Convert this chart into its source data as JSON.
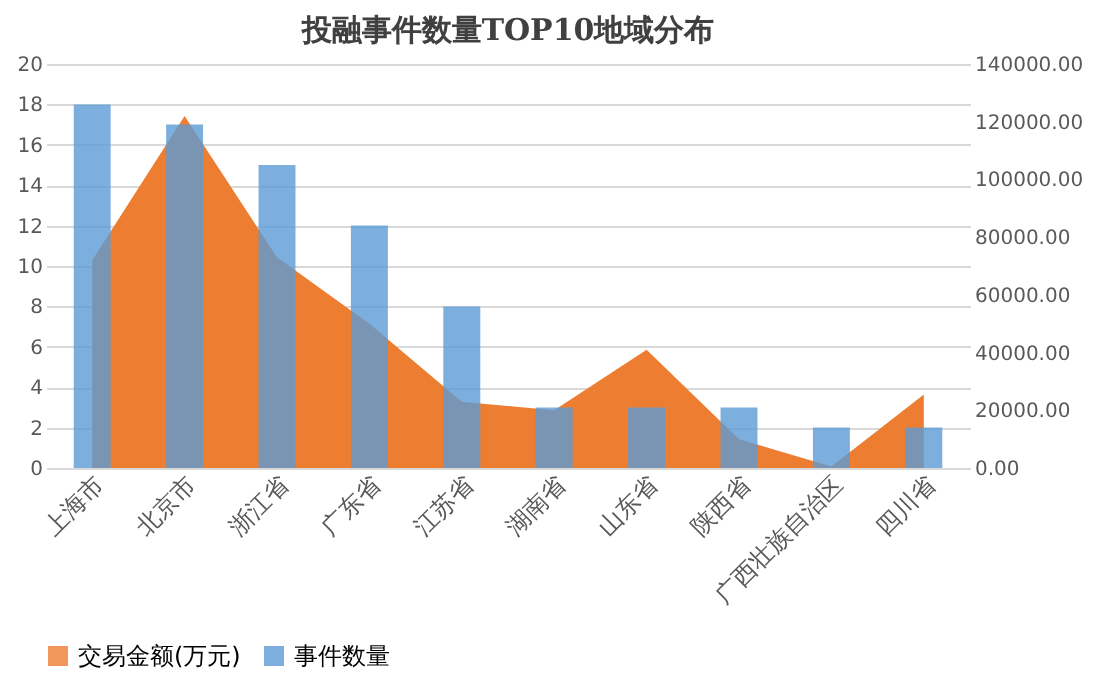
{
  "chart_data": {
    "type": "bar",
    "title": "投融事件数量TOP10地域分布",
    "categories": [
      "上海市",
      "北京市",
      "浙江省",
      "广东省",
      "江苏省",
      "湖南省",
      "山东省",
      "陕西省",
      "广西壮族自治区",
      "四川省"
    ],
    "series": [
      {
        "name": "交易金额(万元)",
        "type": "area",
        "axis": "y2",
        "color": "#ed7d31",
        "values": [
          72000,
          122000,
          73000,
          50000,
          23000,
          20000,
          41000,
          10000,
          500,
          25500
        ]
      },
      {
        "name": "事件数量",
        "color": "#5b9bd5",
        "values": [
          18,
          17,
          15,
          12,
          8,
          3,
          3,
          3,
          2,
          2
        ]
      }
    ],
    "ylim": [
      0,
      20
    ],
    "yticks": [
      0,
      2,
      4,
      6,
      8,
      10,
      12,
      14,
      16,
      18,
      20
    ],
    "y2lim": [
      0,
      140000
    ],
    "y2ticks": [
      {
        "value": 0,
        "label": "0.00"
      },
      {
        "value": 20000,
        "label": "20000.00"
      },
      {
        "value": 40000,
        "label": "40000.00"
      },
      {
        "value": 60000,
        "label": "60000.00"
      },
      {
        "value": 80000,
        "label": "80000.00"
      },
      {
        "value": 100000,
        "label": "100000.00"
      },
      {
        "value": 120000,
        "label": "120000.00"
      },
      {
        "value": 140000,
        "label": "140000.00"
      }
    ],
    "grid": "y",
    "legend": "bottom"
  }
}
